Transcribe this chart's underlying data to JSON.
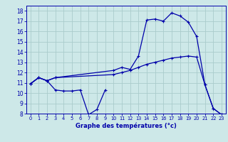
{
  "bg_color": "#cde8e8",
  "grid_color": "#aacccc",
  "line_color": "#0000aa",
  "xlabel": "Graphe des températures (°c)",
  "xlim": [
    -0.5,
    23.5
  ],
  "ylim": [
    8,
    18.5
  ],
  "yticks": [
    8,
    9,
    10,
    11,
    12,
    13,
    14,
    15,
    16,
    17,
    18
  ],
  "xticks": [
    0,
    1,
    2,
    3,
    4,
    5,
    6,
    7,
    8,
    9,
    10,
    11,
    12,
    13,
    14,
    15,
    16,
    17,
    18,
    19,
    20,
    21,
    22,
    23
  ],
  "s1x": [
    0,
    1,
    2,
    3,
    4,
    5,
    6,
    7,
    8,
    9
  ],
  "s1y": [
    10.9,
    11.5,
    11.2,
    10.3,
    10.2,
    10.2,
    10.3,
    7.9,
    8.4,
    10.3
  ],
  "s2x": [
    0,
    1,
    2,
    3,
    10,
    11,
    12,
    13,
    14,
    15,
    16,
    17,
    18,
    19,
    20,
    21,
    22,
    23
  ],
  "s2y": [
    10.9,
    11.5,
    11.2,
    11.5,
    12.2,
    12.5,
    12.3,
    13.6,
    17.1,
    17.2,
    17.0,
    17.8,
    17.5,
    16.9,
    15.5,
    10.8,
    8.5,
    7.9
  ],
  "s3x": [
    0,
    1,
    2,
    3,
    10,
    11,
    12,
    13,
    14,
    15,
    16,
    17,
    18,
    19,
    20,
    21,
    22,
    23
  ],
  "s3y": [
    10.9,
    11.5,
    11.2,
    11.5,
    11.8,
    12.0,
    12.2,
    12.5,
    12.8,
    13.0,
    13.2,
    13.4,
    13.5,
    13.6,
    13.5,
    10.8,
    8.5,
    7.9
  ],
  "tick_fontsize": 5.5,
  "xlabel_fontsize": 6.0,
  "lw": 0.9,
  "marker_size": 3.5
}
